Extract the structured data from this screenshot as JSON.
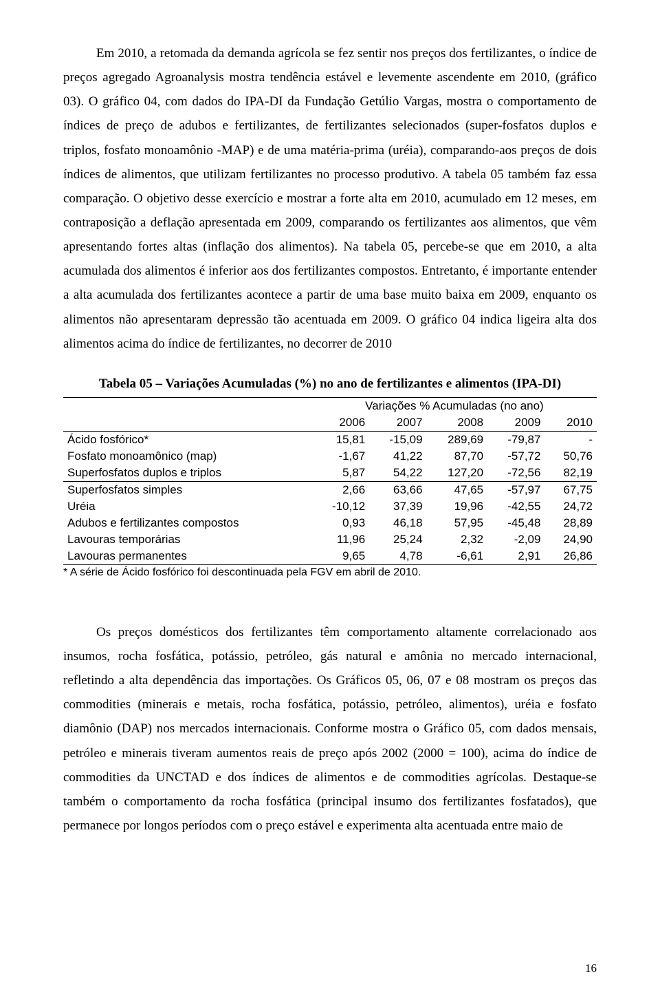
{
  "paragraphs": {
    "p1": "Em 2010, a retomada da demanda agrícola se fez sentir nos preços dos fertilizantes, o índice de preços agregado Agroanalysis mostra tendência estável e levemente ascendente em 2010, (gráfico 03). O gráfico 04, com dados do IPA-DI da Fundação Getúlio Vargas, mostra o comportamento de índices de preço de adubos e fertilizantes, de fertilizantes selecionados (super-fosfatos duplos e triplos, fosfato monoamônio -MAP) e de uma matéria-prima (uréia), comparando-aos preços de dois índices de alimentos, que utilizam fertilizantes no processo produtivo. A tabela 05 também faz essa comparação. O objetivo desse exercício e mostrar a forte alta em 2010, acumulado em 12 meses, em contraposição a deflação apresentada em 2009, comparando os fertilizantes aos alimentos, que vêm apresentando fortes altas (inflação dos alimentos). Na tabela 05, percebe-se que em 2010, a alta acumulada dos alimentos é inferior aos dos fertilizantes compostos. Entretanto, é importante entender a alta acumulada dos fertilizantes acontece a partir de uma base muito baixa em 2009, enquanto os alimentos não apresentaram depressão tão acentuada em 2009. O gráfico 04 indica ligeira alta dos alimentos acima do índice de fertilizantes, no decorrer de 2010",
    "p2": "Os preços domésticos dos fertilizantes têm comportamento altamente correlacionado aos insumos, rocha fosfática, potássio, petróleo, gás natural e amônia no mercado internacional, refletindo a alta dependência das importações. Os Gráficos 05, 06, 07 e 08 mostram os preços das commodities (minerais e metais, rocha fosfática, potássio, petróleo, alimentos), uréia e fosfato diamônio (DAP)  nos mercados internacionais. Conforme mostra o Gráfico 05, com dados mensais, petróleo e minerais tiveram aumentos reais de preço após 2002 (2000 = 100), acima do índice de commodities da UNCTAD e dos índices de alimentos e de commodities agrícolas. Destaque-se também o comportamento da rocha fosfática (principal insumo dos fertilizantes fosfatados), que permanece por longos períodos com o preço estável e experimenta alta acentuada entre maio de"
  },
  "table": {
    "title": "Tabela 05 – Variações Acumuladas (%) no ano de fertilizantes e alimentos (IPA-DI)",
    "super_header": "Variações % Acumuladas (no ano)",
    "years": [
      "2006",
      "2007",
      "2008",
      "2009",
      "2010"
    ],
    "rows": [
      {
        "label": "Ácido fosfórico*",
        "values": [
          "15,81",
          "-15,09",
          "289,69",
          "-79,87",
          "-"
        ],
        "divider": false
      },
      {
        "label": "Fosfato monoamônico (map)",
        "values": [
          "-1,67",
          "41,22",
          "87,70",
          "-57,72",
          "50,76"
        ],
        "divider": false
      },
      {
        "label": "Superfosfatos duplos e triplos",
        "values": [
          "5,87",
          "54,22",
          "127,20",
          "-72,56",
          "82,19"
        ],
        "divider": true
      },
      {
        "label": "Superfosfatos simples",
        "values": [
          "2,66",
          "63,66",
          "47,65",
          "-57,97",
          "67,75"
        ],
        "divider": false
      },
      {
        "label": "Uréia",
        "values": [
          "-10,12",
          "37,39",
          "19,96",
          "-42,55",
          "24,72"
        ],
        "divider": false
      },
      {
        "label": "Adubos e fertilizantes compostos",
        "values": [
          "0,93",
          "46,18",
          "57,95",
          "-45,48",
          "28,89"
        ],
        "divider": false
      },
      {
        "label": "Lavouras temporárias",
        "values": [
          "11,96",
          "25,24",
          "2,32",
          "-2,09",
          "24,90"
        ],
        "divider": false
      },
      {
        "label": "Lavouras permanentes",
        "values": [
          "9,65",
          "4,78",
          "-6,61",
          "2,91",
          "26,86"
        ],
        "divider": false
      }
    ],
    "footnote": "* A série de Ácido fosfórico foi descontinuada pela FGV em abril de 2010."
  },
  "page_number": "16"
}
